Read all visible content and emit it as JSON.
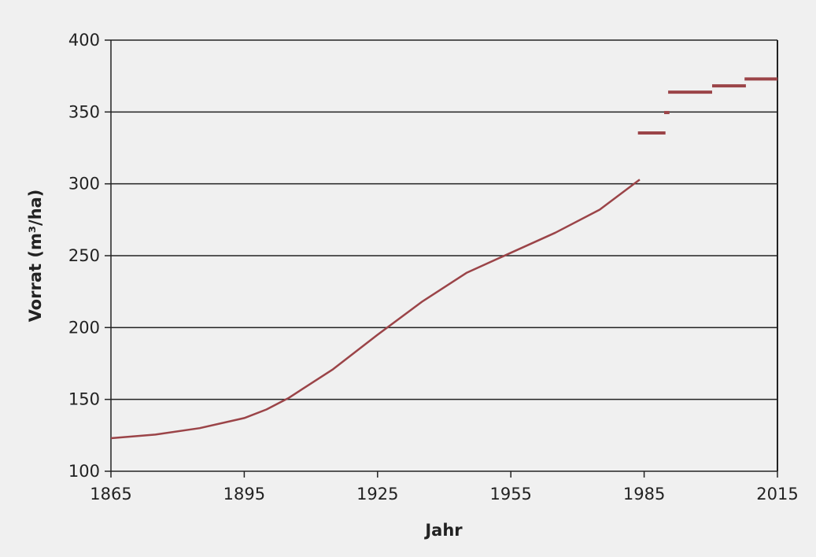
{
  "chart_data": {
    "type": "line",
    "title": "",
    "xlabel": "Jahr",
    "ylabel": "Vorrat (m³/ha)",
    "xlim": [
      1865,
      2015
    ],
    "ylim": [
      100,
      400
    ],
    "xticks": [
      1865,
      1895,
      1925,
      1955,
      1985,
      2015
    ],
    "yticks": [
      100,
      150,
      200,
      250,
      300,
      350,
      400
    ],
    "grid": "horizontal",
    "color": "#9b4448",
    "series": [
      {
        "name": "curve",
        "x": [
          1865,
          1875,
          1885,
          1895,
          1900,
          1905,
          1915,
          1925,
          1935,
          1945,
          1955,
          1965,
          1975,
          1984
        ],
        "y": [
          123,
          125.5,
          130,
          137,
          143,
          151,
          171,
          195,
          218,
          238,
          252,
          266,
          282,
          303
        ]
      },
      {
        "name": "segments",
        "segments": [
          {
            "x": [
              1983.6,
              1989.8
            ],
            "y": 335.4
          },
          {
            "x": [
              1989.5,
              1990.7
            ],
            "y": 349.6
          },
          {
            "x": [
              1990.4,
              2000.3
            ],
            "y": 363.8
          },
          {
            "x": [
              2000.3,
              2007.9
            ],
            "y": 368.2
          },
          {
            "x": [
              2007.6,
              2015
            ],
            "y": 373
          }
        ]
      }
    ]
  }
}
